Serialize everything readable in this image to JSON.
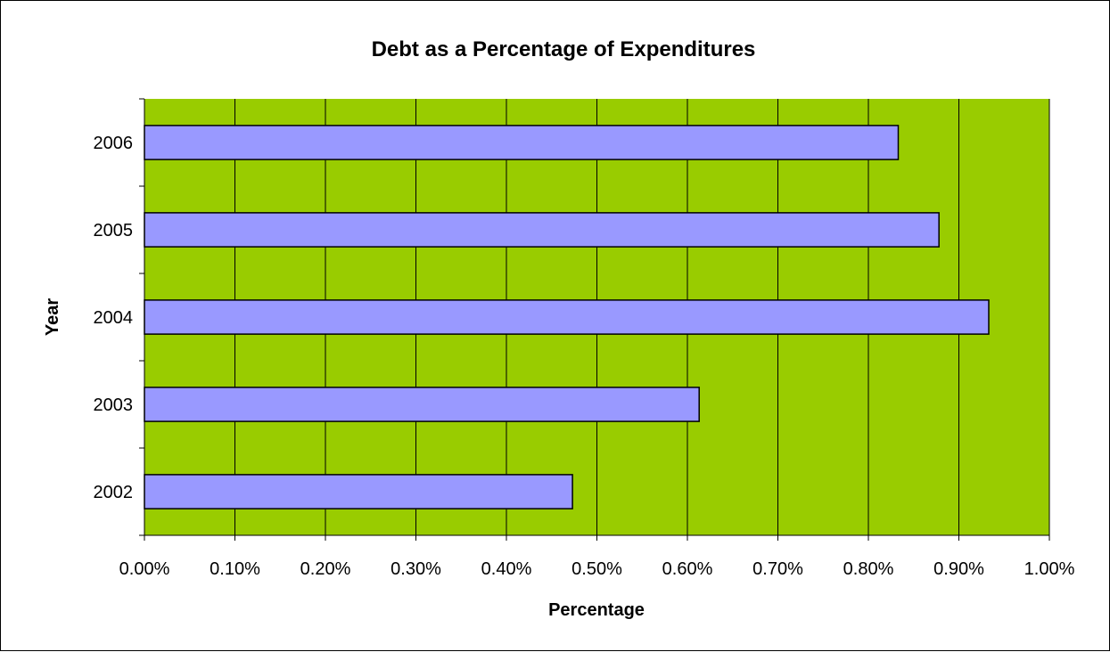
{
  "chart_data": {
    "type": "bar",
    "orientation": "horizontal",
    "title": "Debt as a Percentage of Expenditures",
    "xlabel": "Percentage",
    "ylabel": "Year",
    "categories": [
      "2002",
      "2003",
      "2004",
      "2005",
      "2006"
    ],
    "values": [
      0.473,
      0.613,
      0.933,
      0.878,
      0.833
    ],
    "value_unit": "%",
    "xlim": [
      0,
      1.0
    ],
    "x_ticks": [
      0.0,
      0.1,
      0.2,
      0.3,
      0.4,
      0.5,
      0.6,
      0.7,
      0.8,
      0.9,
      1.0
    ],
    "x_tick_labels": [
      "0.00%",
      "0.10%",
      "0.20%",
      "0.30%",
      "0.40%",
      "0.50%",
      "0.60%",
      "0.70%",
      "0.80%",
      "0.90%",
      "1.00%"
    ],
    "grid": "vertical",
    "legend": "none",
    "colors": {
      "plot_background": "#99CC00",
      "bar_fill": "#9999FF",
      "bar_stroke": "#000000",
      "grid": "#000000"
    }
  }
}
